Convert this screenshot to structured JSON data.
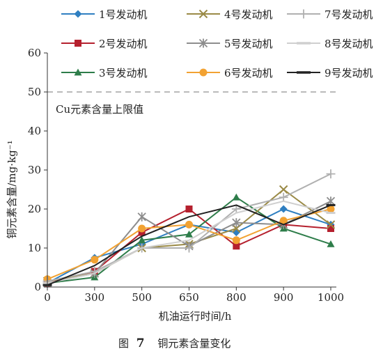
{
  "figure": {
    "caption_label": "图",
    "caption_number": "7",
    "caption_text": "铜元素含量变化"
  },
  "chart_data": {
    "type": "line",
    "xlabel": "机油运行时间/h",
    "ylabel": "铜元素含量/mg·kg⁻¹",
    "x": [
      0,
      300,
      500,
      650,
      800,
      900,
      1000
    ],
    "ylim": [
      0,
      60
    ],
    "yticks": [
      0,
      10,
      20,
      30,
      40,
      50,
      60
    ],
    "limit_line": {
      "value": 50,
      "label": "Cu元素含量上限值",
      "color": "#b0b0b0",
      "style": "dashed"
    },
    "legend_placement": "top",
    "series": [
      {
        "name": "1号发动机",
        "marker": "diamond",
        "color": "#2f7fc1",
        "values": [
          1,
          7.5,
          11,
          16,
          14,
          20,
          16
        ]
      },
      {
        "name": "2号发动机",
        "marker": "square",
        "color": "#b5202e",
        "values": [
          1,
          4,
          14,
          20,
          10.5,
          16,
          15
        ]
      },
      {
        "name": "3号发动机",
        "marker": "triangle",
        "color": "#2e7d4a",
        "values": [
          1,
          2.5,
          12,
          13.5,
          23,
          15,
          11
        ]
      },
      {
        "name": "4号发动机",
        "marker": "x",
        "color": "#9a8a46",
        "values": [
          1.5,
          3.5,
          10,
          11,
          15,
          25,
          16
        ]
      },
      {
        "name": "5号发动机",
        "marker": "star",
        "color": "#8d8d8d",
        "values": [
          1,
          3.5,
          18,
          10.5,
          16.5,
          16,
          22
        ]
      },
      {
        "name": "6号发动机",
        "marker": "circle",
        "color": "#f2a232",
        "values": [
          2,
          7,
          15,
          16,
          12,
          17,
          20
        ]
      },
      {
        "name": "7号发动机",
        "marker": "plus",
        "color": "#b0b0b0",
        "values": [
          1.5,
          4,
          10,
          10,
          20,
          23,
          29
        ]
      },
      {
        "name": "8号发动机",
        "marker": "dash",
        "color": "#cfcfcf",
        "values": [
          1,
          3.5,
          10,
          12,
          19,
          22,
          19
        ]
      },
      {
        "name": "9号发动机",
        "marker": "dash",
        "color": "#222222",
        "values": [
          0.5,
          5.5,
          13,
          18,
          21,
          16,
          21
        ]
      }
    ]
  }
}
